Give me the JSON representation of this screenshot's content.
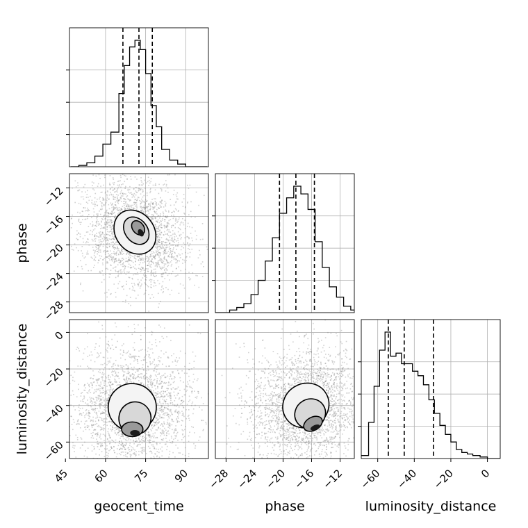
{
  "chart_data": {
    "type": "corner",
    "parameters": [
      "geocent_time",
      "phase",
      "luminosity_distance"
    ],
    "axis_labels": {
      "geocent_time": "geocent_time",
      "phase": "phase",
      "luminosity_distance": "luminosity_distance"
    },
    "ranges": {
      "geocent_time": [
        46.5,
        98.5
      ],
      "phase": [
        -29.5,
        -10.0
      ],
      "luminosity_distance": [
        -69.0,
        7.0
      ]
    },
    "ticks": {
      "geocent_time": [
        45,
        60,
        75,
        90
      ],
      "phase": [
        -28,
        -24,
        -20,
        -16,
        -12
      ],
      "luminosity_distance": [
        -60,
        -40,
        -20,
        0
      ],
      "lum_row": [
        -60,
        -40,
        -20,
        0
      ]
    },
    "tick_labels": {
      "geocent_time": [
        "45",
        "60",
        "75",
        "90"
      ],
      "phase": [
        "−28",
        "−24",
        "−20",
        "−16",
        "−12"
      ],
      "luminosity_distance": [
        "−60",
        "−40",
        "−20",
        "0"
      ],
      "lum_row": [
        "−60",
        "−40",
        "−20",
        "0"
      ]
    },
    "quantiles": {
      "geocent_time": [
        66.5,
        72.5,
        77.5
      ],
      "phase": [
        -20.5,
        -18.2,
        -15.6
      ],
      "luminosity_distance": [
        -54.2,
        -45.5,
        -29.5
      ]
    },
    "histograms": {
      "geocent_time": {
        "edges": [
          47,
          50,
          53,
          56,
          59,
          62,
          65,
          67,
          69,
          71,
          73,
          75,
          77,
          79,
          81,
          84,
          87,
          90,
          94,
          98
        ],
        "counts": [
          0,
          1,
          3,
          8,
          17,
          26,
          55,
          76,
          90,
          95,
          88,
          70,
          46,
          30,
          13,
          5,
          2,
          0,
          0
        ]
      },
      "phase": {
        "edges": [
          -29.5,
          -28.5,
          -27.5,
          -26.5,
          -25.5,
          -24.5,
          -23.5,
          -22.5,
          -21.5,
          -20.5,
          -19.5,
          -18.5,
          -17.5,
          -16.5,
          -15.5,
          -14.5,
          -13.5,
          -12.5,
          -11.5,
          -10.5,
          -10.0
        ],
        "counts": [
          0,
          0,
          2,
          4,
          7,
          14,
          25,
          40,
          58,
          77,
          89,
          98,
          92,
          80,
          55,
          35,
          20,
          12,
          5,
          2
        ]
      },
      "luminosity_distance": {
        "edges": [
          -69,
          -65,
          -62,
          -59,
          -56,
          -53,
          -50,
          -47,
          -44,
          -41,
          -38,
          -35,
          -32,
          -29,
          -26,
          -23,
          -20,
          -17,
          -14,
          -11,
          -8,
          -4,
          0,
          7
        ],
        "counts": [
          2,
          24,
          48,
          72,
          84,
          68,
          70,
          63,
          63,
          58,
          55,
          49,
          39,
          30,
          22,
          16,
          11,
          6,
          4,
          3,
          2,
          1,
          0
        ]
      }
    },
    "blobs": {
      "phase_vs_geocent_time": [
        {
          "level": 0.95,
          "cx": 71,
          "cy": -18.2,
          "sx": 7.2,
          "sy": 3.3,
          "rot": -0.66
        },
        {
          "level": 0.75,
          "cx": 71.5,
          "cy": -18.0,
          "sx": 4.2,
          "sy": 2.1,
          "rot": -0.66
        },
        {
          "level": 0.4,
          "cx": 72.2,
          "cy": -17.6,
          "sx": 2.1,
          "sy": 1.1,
          "rot": -0.66
        },
        {
          "level": 0.15,
          "cx": 73.2,
          "cy": -18.3,
          "sx": 1.0,
          "sy": 0.55,
          "rot": -0.5
        }
      ],
      "luminosity_distance_vs_geocent_time": [
        {
          "level": 0.95,
          "cx": 70,
          "cy": -41,
          "sx": 9,
          "sy": 13,
          "rot": 0.1
        },
        {
          "level": 0.7,
          "cx": 71,
          "cy": -47,
          "sx": 6,
          "sy": 9,
          "rot": 0.2
        },
        {
          "level": 0.35,
          "cx": 70,
          "cy": -53,
          "sx": 4,
          "sy": 4,
          "rot": 0.0
        },
        {
          "level": 0.15,
          "cx": 71,
          "cy": -55,
          "sx": 1.8,
          "sy": 1.6,
          "rot": 0.0
        }
      ],
      "luminosity_distance_vs_phase": [
        {
          "level": 0.95,
          "cx": -16.8,
          "cy": -40,
          "sx": 3.3,
          "sy": 12,
          "rot": -0.55
        },
        {
          "level": 0.7,
          "cx": -16.2,
          "cy": -44.5,
          "sx": 2.2,
          "sy": 8,
          "rot": -0.55
        },
        {
          "level": 0.4,
          "cx": -15.8,
          "cy": -50,
          "sx": 1.4,
          "sy": 3.6,
          "rot": -0.5
        },
        {
          "level": 0.15,
          "cx": -15.5,
          "cy": -52,
          "sx": 0.7,
          "sy": 1.3,
          "rot": -0.4
        }
      ]
    },
    "grid": true
  }
}
